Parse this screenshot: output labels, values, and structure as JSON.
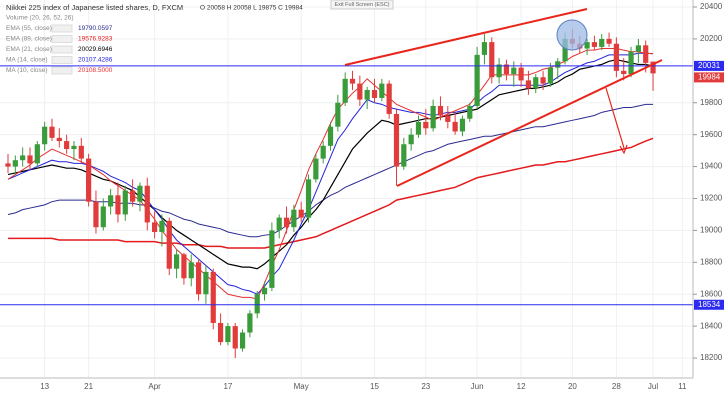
{
  "chart_data": {
    "type": "candlestick",
    "title": "Nikkei 225 index of Japanese listed shares, D, FXCM",
    "status": "O 20058 H 20058 L 19875 C 19984",
    "volume_label": "Volume (20, 26, 52, 26)",
    "button": "Exit Full Screen (ESC)",
    "up_color": "#3a9b3a",
    "down_color": "#e23b3b",
    "categories": [
      null,
      null,
      null,
      null,
      null,
      "13",
      null,
      null,
      null,
      null,
      null,
      "21",
      null,
      null,
      null,
      null,
      null,
      null,
      null,
      null,
      "Apr",
      null,
      null,
      null,
      null,
      null,
      null,
      null,
      null,
      null,
      "17",
      null,
      null,
      null,
      null,
      null,
      null,
      null,
      null,
      null,
      "May",
      null,
      null,
      null,
      null,
      null,
      null,
      null,
      null,
      null,
      "15",
      null,
      null,
      null,
      null,
      null,
      null,
      "23",
      null,
      null,
      null,
      null,
      null,
      null,
      "Jun",
      null,
      null,
      null,
      null,
      null,
      "12",
      null,
      null,
      null,
      null,
      null,
      null,
      "20",
      null,
      null,
      null,
      null,
      null,
      "28",
      null,
      null,
      null,
      null,
      "Jul",
      null,
      null,
      null,
      "11",
      null
    ],
    "ohlc": {
      "open": [
        19420,
        19400,
        19440,
        19470,
        19420,
        19540,
        19650,
        19580,
        19560,
        19510,
        19530,
        19450,
        19180,
        19020,
        19150,
        19220,
        19100,
        19250,
        19180,
        19280,
        19050,
        18990,
        19060,
        18760,
        18850,
        18700,
        18800,
        18600,
        18740,
        18420,
        18300,
        18400,
        18260,
        18360,
        18480,
        18600,
        18640,
        19000,
        19080,
        19020,
        19130,
        19080,
        19320,
        19450,
        19530,
        19650,
        19800,
        19950,
        19920,
        19820,
        19880,
        19830,
        19920,
        19730,
        19400,
        19540,
        19600,
        19680,
        19640,
        19780,
        19720,
        19680,
        19620,
        19700,
        19780,
        20100,
        20180,
        19960,
        20040,
        19980,
        20020,
        19940,
        19890,
        19960,
        19920,
        20020,
        20060,
        20200,
        20170,
        20140,
        20180,
        20150,
        20200,
        20170,
        20000,
        19980,
        20120,
        20160,
        20058,
        null,
        null,
        null,
        null,
        null
      ],
      "high": [
        19480,
        19470,
        19520,
        19520,
        19560,
        19680,
        19700,
        19640,
        19600,
        19560,
        19580,
        19480,
        19250,
        19200,
        19260,
        19300,
        19280,
        19320,
        19300,
        19330,
        19120,
        19100,
        19080,
        18880,
        18860,
        18850,
        18820,
        18780,
        18760,
        18480,
        18420,
        18420,
        18380,
        18500,
        18620,
        18680,
        19050,
        19100,
        19150,
        19160,
        19180,
        19350,
        19480,
        19560,
        19680,
        19850,
        19990,
        20000,
        19970,
        19900,
        19950,
        19950,
        19940,
        19760,
        19580,
        19640,
        19720,
        19760,
        19820,
        19840,
        19780,
        19740,
        19720,
        19800,
        20150,
        20230,
        20210,
        20080,
        20070,
        20060,
        20050,
        20000,
        19980,
        20000,
        20050,
        20080,
        20240,
        20260,
        20220,
        20200,
        20220,
        20230,
        20240,
        20210,
        20080,
        20150,
        20200,
        20190,
        20058,
        null,
        null,
        null,
        null,
        null
      ],
      "low": [
        19360,
        19350,
        19400,
        19380,
        19400,
        19500,
        19560,
        19520,
        19480,
        19440,
        19420,
        19150,
        18980,
        19000,
        19100,
        19050,
        19060,
        19150,
        19120,
        19000,
        18950,
        18900,
        18720,
        18700,
        18660,
        18650,
        18560,
        18540,
        18380,
        18280,
        18280,
        18200,
        18240,
        18330,
        18450,
        18560,
        18620,
        18950,
        18980,
        18990,
        19050,
        19050,
        19300,
        19420,
        19500,
        19620,
        19780,
        19880,
        19780,
        19760,
        19800,
        19810,
        19700,
        19280,
        19380,
        19500,
        19580,
        19600,
        19620,
        19690,
        19640,
        19600,
        19590,
        19680,
        19760,
        20040,
        19920,
        19920,
        19940,
        19900,
        19900,
        19850,
        19860,
        19880,
        19900,
        19950,
        20040,
        20140,
        20110,
        20100,
        20130,
        20130,
        20150,
        19960,
        19940,
        19960,
        20050,
        19990,
        19875,
        null,
        null,
        null,
        null,
        null
      ],
      "close": [
        19400,
        19440,
        19470,
        19420,
        19540,
        19650,
        19580,
        19560,
        19510,
        19530,
        19450,
        19180,
        19020,
        19150,
        19220,
        19100,
        19250,
        19180,
        19280,
        19050,
        18990,
        19060,
        18760,
        18850,
        18700,
        18800,
        18600,
        18740,
        18420,
        18300,
        18400,
        18260,
        18360,
        18480,
        18600,
        18640,
        19000,
        19080,
        19020,
        19130,
        19080,
        19320,
        19450,
        19530,
        19650,
        19800,
        19950,
        19920,
        19820,
        19880,
        19830,
        19920,
        19730,
        19400,
        19540,
        19600,
        19680,
        19640,
        19780,
        19720,
        19680,
        19620,
        19700,
        19780,
        20100,
        20180,
        19960,
        20040,
        19980,
        20020,
        19940,
        19890,
        19960,
        19920,
        20020,
        20060,
        20200,
        20170,
        20140,
        20180,
        20150,
        20200,
        20170,
        20000,
        19980,
        20120,
        20160,
        20050,
        19984,
        null,
        null,
        null,
        null,
        null
      ]
    },
    "series": [
      {
        "name": "EMA (55, close)",
        "color": "#2b2b8f",
        "width": 1,
        "legend_value": 19790.0597,
        "values": [
          19100,
          19110,
          19130,
          19140,
          19150,
          19160,
          19180,
          19190,
          19190,
          19190,
          19190,
          19190,
          19180,
          19180,
          19180,
          19170,
          19170,
          19170,
          19160,
          19160,
          19140,
          19120,
          19110,
          19090,
          19070,
          19060,
          19040,
          19030,
          19020,
          19010,
          18990,
          18980,
          18970,
          18960,
          18960,
          18970,
          18975,
          19000,
          19030,
          19060,
          19090,
          19120,
          19160,
          19190,
          19220,
          19240,
          19270,
          19290,
          19310,
          19330,
          19350,
          19370,
          19390,
          19410,
          19430,
          19450,
          19470,
          19490,
          19500,
          19520,
          19540,
          19550,
          19560,
          19570,
          19580,
          19590,
          19590,
          19600,
          19610,
          19620,
          19630,
          19640,
          19650,
          19650,
          19660,
          19670,
          19680,
          19690,
          19700,
          19710,
          19720,
          19740,
          19750,
          19760,
          19770,
          19770,
          19780,
          19790,
          19790,
          null,
          null,
          null,
          null,
          null
        ]
      },
      {
        "name": "EMA (89, close)",
        "color": "#e41a1c",
        "width": 1.5,
        "legend_value": 19576.9283,
        "values": [
          18950,
          18950,
          18950,
          18950,
          18950,
          18950,
          18950,
          18940,
          18940,
          18940,
          18940,
          18940,
          18940,
          18940,
          18940,
          18940,
          18930,
          18930,
          18930,
          18930,
          18930,
          18920,
          18920,
          18920,
          18910,
          18910,
          18910,
          18900,
          18900,
          18900,
          18890,
          18890,
          18890,
          18890,
          18890,
          18890,
          18900,
          18910,
          18920,
          18930,
          18940,
          18950,
          18960,
          18980,
          19000,
          19020,
          19040,
          19060,
          19080,
          19100,
          19120,
          19140,
          19160,
          19190,
          19200,
          19210,
          19220,
          19230,
          19240,
          19250,
          19260,
          19270,
          19290,
          19310,
          19330,
          19340,
          19350,
          19360,
          19370,
          19380,
          19390,
          19400,
          19410,
          19410,
          19420,
          19430,
          19430,
          19440,
          19450,
          19460,
          19470,
          19480,
          19490,
          19500,
          19510,
          19520,
          19540,
          19560,
          19577,
          null,
          null,
          null,
          null,
          null
        ]
      },
      {
        "name": "EMA (21, close)",
        "color": "#000000",
        "width": 1.2,
        "legend_value": 20029.6946,
        "values": [
          19350,
          19360,
          19370,
          19380,
          19390,
          19400,
          19410,
          19400,
          19390,
          19390,
          19380,
          19360,
          19340,
          19320,
          19310,
          19290,
          19270,
          19250,
          19210,
          19170,
          19130,
          19080,
          19040,
          19000,
          18970,
          18940,
          18910,
          18880,
          18850,
          18820,
          18790,
          18780,
          18770,
          18770,
          18760,
          18790,
          18830,
          18870,
          18910,
          18970,
          19020,
          19080,
          19130,
          19190,
          19270,
          19350,
          19430,
          19510,
          19560,
          19610,
          19650,
          19690,
          19680,
          19660,
          19670,
          19680,
          19690,
          19700,
          19700,
          19710,
          19720,
          19730,
          19740,
          19750,
          19760,
          19790,
          19820,
          19850,
          19860,
          19870,
          19880,
          19890,
          19890,
          19900,
          19910,
          19930,
          19960,
          19980,
          20010,
          20020,
          20030,
          20040,
          20060,
          20070,
          20060,
          20050,
          20040,
          20040,
          20030,
          null,
          null,
          null,
          null,
          null
        ]
      },
      {
        "name": "MA (14, close)",
        "color": "#2323dd",
        "width": 1,
        "legend_value": 20107.4286,
        "values": [
          19320,
          19340,
          19360,
          19380,
          19400,
          19420,
          19440,
          19430,
          19430,
          19420,
          19420,
          19410,
          19390,
          19370,
          19340,
          19320,
          19300,
          19270,
          19250,
          19190,
          19130,
          19070,
          19000,
          18940,
          18900,
          18860,
          18820,
          18780,
          18740,
          18700,
          18660,
          18650,
          18630,
          18620,
          18600,
          18650,
          18710,
          18760,
          18850,
          18940,
          19040,
          19130,
          19240,
          19350,
          19460,
          19570,
          19630,
          19700,
          19760,
          19820,
          19800,
          19790,
          19770,
          19760,
          19750,
          19740,
          19740,
          19730,
          19720,
          19730,
          19740,
          19740,
          19750,
          19760,
          19800,
          19840,
          19870,
          19910,
          19910,
          19910,
          19910,
          19910,
          19910,
          19910,
          19930,
          19960,
          19990,
          20010,
          20030,
          20050,
          20060,
          20080,
          20100,
          20100,
          20100,
          20100,
          20110,
          20110,
          20107,
          null,
          null,
          null,
          null,
          null
        ]
      },
      {
        "name": "MA (10, close)",
        "color": "#e53030",
        "width": 1,
        "legend_value": {
          "value": 20108.5,
          "label": "20108.5000"
        },
        "values": [
          19320,
          19350,
          19380,
          19410,
          19450,
          19480,
          19510,
          19490,
          19470,
          19450,
          19430,
          19410,
          19380,
          19350,
          19310,
          19280,
          19250,
          19220,
          19190,
          19130,
          19070,
          19000,
          18940,
          18880,
          18840,
          18800,
          18760,
          18720,
          18680,
          18640,
          18600,
          18590,
          18580,
          18580,
          18570,
          18670,
          18780,
          18880,
          19000,
          19130,
          19250,
          19380,
          19480,
          19570,
          19670,
          19760,
          19810,
          19860,
          19900,
          19950,
          19910,
          19870,
          19830,
          19790,
          19770,
          19750,
          19730,
          19710,
          19690,
          19710,
          19730,
          19750,
          19770,
          19790,
          19850,
          19910,
          19975,
          19975,
          19975,
          19975,
          19975,
          19975,
          19990,
          20010,
          20020,
          20040,
          20060,
          20090,
          20110,
          20130,
          20130,
          20140,
          20140,
          20140,
          20130,
          20120,
          20120,
          20110,
          20108,
          null,
          null,
          null,
          null,
          null
        ]
      }
    ],
    "levels": [
      {
        "value": 20031,
        "color": "#2a2af0"
      },
      {
        "value": 18534,
        "color": "#2a2af0"
      }
    ],
    "ylim": [
      18075,
      20444
    ],
    "yticks": [
      18200,
      18400,
      18600,
      18800,
      19000,
      19200,
      19400,
      19600,
      19800,
      20200,
      20400
    ],
    "grid": true
  }
}
